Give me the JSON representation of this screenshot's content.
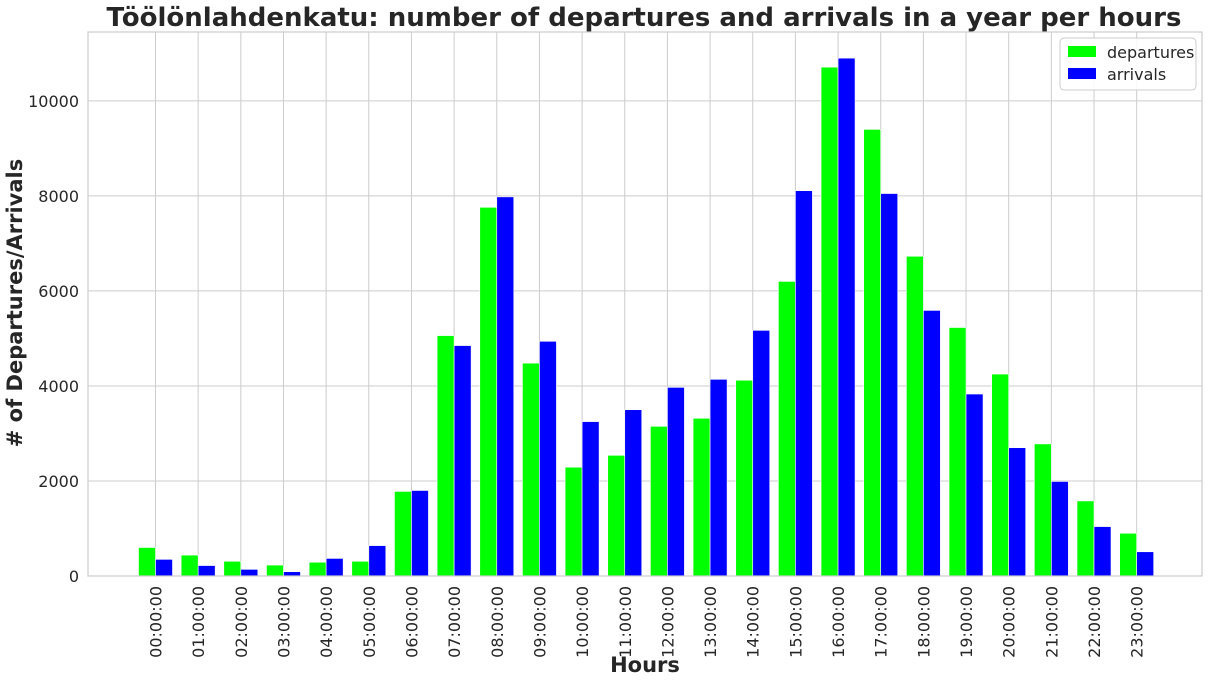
{
  "chart_data": {
    "type": "bar",
    "title": "Töölönlahdenkatu: number of departures and arrivals in a year per hours",
    "xlabel": "Hours",
    "ylabel": "# of Departures/Arrivals",
    "categories": [
      "00:00:00",
      "01:00:00",
      "02:00:00",
      "03:00:00",
      "04:00:00",
      "05:00:00",
      "06:00:00",
      "07:00:00",
      "08:00:00",
      "09:00:00",
      "10:00:00",
      "11:00:00",
      "12:00:00",
      "13:00:00",
      "14:00:00",
      "15:00:00",
      "16:00:00",
      "17:00:00",
      "18:00:00",
      "19:00:00",
      "20:00:00",
      "21:00:00",
      "22:00:00",
      "23:00:00"
    ],
    "series": [
      {
        "name": "departures",
        "color": "#00ff00",
        "values": [
          600,
          440,
          310,
          230,
          290,
          310,
          1780,
          5060,
          7760,
          4480,
          2290,
          2540,
          3150,
          3320,
          4120,
          6200,
          10710,
          9400,
          6730,
          5230,
          4250,
          2780,
          1580,
          900
        ]
      },
      {
        "name": "arrivals",
        "color": "#0000ff",
        "values": [
          350,
          220,
          140,
          90,
          370,
          640,
          1800,
          4850,
          7980,
          4940,
          3250,
          3500,
          3970,
          4140,
          5170,
          8110,
          10900,
          8050,
          5590,
          3830,
          2700,
          1990,
          1040,
          510
        ]
      }
    ],
    "ylim": [
      0,
      11450
    ],
    "yticks": [
      0,
      2000,
      4000,
      6000,
      8000,
      10000
    ],
    "grid": true,
    "legend": "top-right"
  }
}
